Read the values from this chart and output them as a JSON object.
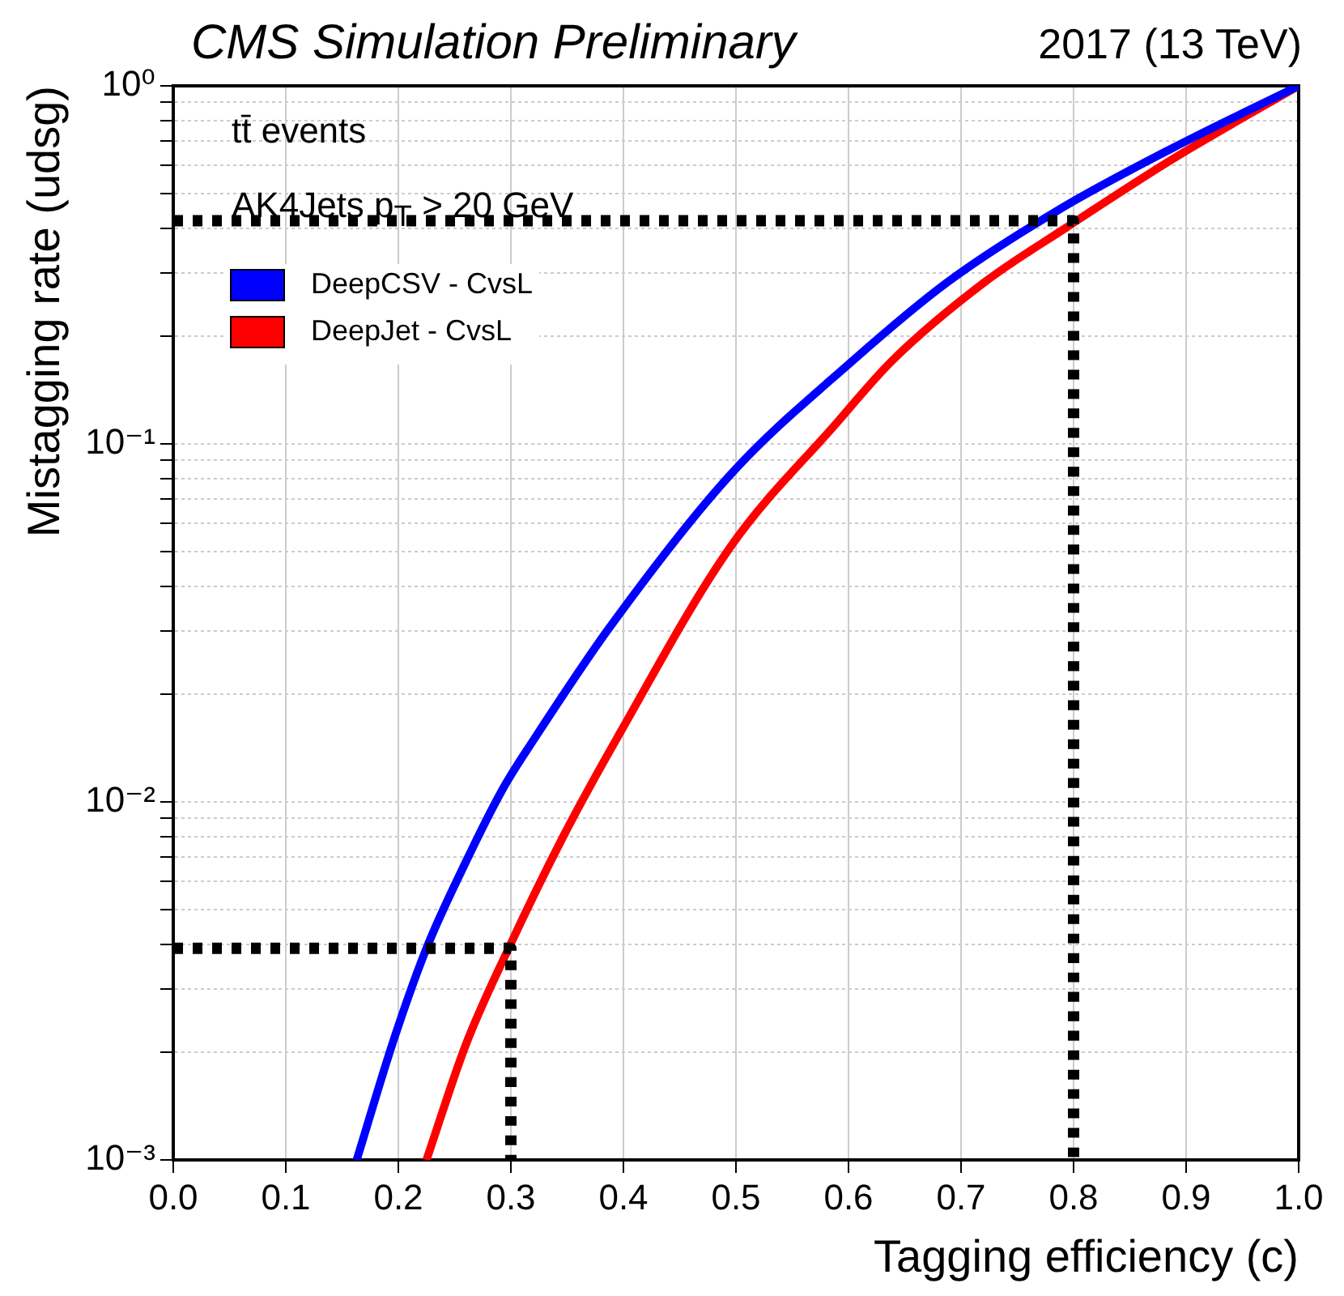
{
  "chart_data": {
    "type": "line",
    "title": "CMS Simulation Preliminary",
    "subtitle": "2017 (13 TeV)",
    "xlabel": "Tagging efficiency (c)",
    "ylabel": "Mistagging rate (udsg)",
    "annotations": [
      "tt̄ events",
      "AK4Jets p$_{T}$ > 20 GeV"
    ],
    "xlim": [
      0,
      1
    ],
    "xticks": [
      {
        "value": 0,
        "label": "0.0"
      },
      0.1,
      0.2,
      0.3,
      0.4,
      0.5,
      0.6,
      0.7,
      0.8,
      0.9,
      {
        "value": 1,
        "label": "1.0"
      }
    ],
    "ylim": [
      0.001,
      1
    ],
    "log": "y",
    "yticks": [
      {
        "value": 0.001,
        "label": "10⁻³"
      },
      {
        "value": 0.002,
        "label": null
      },
      {
        "value": 0.003,
        "label": null
      },
      {
        "value": 0.004,
        "label": null
      },
      {
        "value": 0.005,
        "label": null
      },
      {
        "value": 0.006,
        "label": null
      },
      {
        "value": 0.007,
        "label": null
      },
      {
        "value": 0.008,
        "label": null
      },
      {
        "value": 0.009,
        "label": null
      },
      {
        "value": 0.01,
        "label": "10⁻²"
      },
      {
        "value": 0.02,
        "label": null
      },
      {
        "value": 0.03,
        "label": null
      },
      {
        "value": 0.04,
        "label": null
      },
      {
        "value": 0.05,
        "label": null
      },
      {
        "value": 0.06,
        "label": null
      },
      {
        "value": 0.07,
        "label": null
      },
      {
        "value": 0.08,
        "label": null
      },
      {
        "value": 0.09,
        "label": null
      },
      {
        "value": 0.1,
        "label": "10⁻¹"
      },
      {
        "value": 0.2,
        "label": null
      },
      {
        "value": 0.3,
        "label": null
      },
      {
        "value": 0.4,
        "label": null
      },
      {
        "value": 0.5,
        "label": null
      },
      {
        "value": 0.6,
        "label": null
      },
      {
        "value": 0.7,
        "label": null
      },
      {
        "value": 0.8,
        "label": null
      },
      {
        "value": 0.9,
        "label": null
      },
      {
        "value": 1,
        "label": "10⁰"
      }
    ],
    "grid": true,
    "legend": "top left",
    "marker": "none",
    "series": [
      {
        "name": "DeepCSV - CvsL",
        "color": "#0000ff",
        "x": [
          0.163,
          0.196,
          0.225,
          0.26,
          0.293,
          0.322,
          0.388,
          0.495,
          0.604,
          0.688,
          0.787,
          0.887,
          1.0
        ],
        "values": [
          0.001,
          0.00217,
          0.0039,
          0.0068,
          0.0109,
          0.0152,
          0.0308,
          0.082,
          0.171,
          0.283,
          0.451,
          0.668,
          1.0
        ]
      },
      {
        "name": "DeepJet - CvsL",
        "color": "#ff0000",
        "x": [
          0.225,
          0.26,
          0.298,
          0.347,
          0.395,
          0.495,
          0.588,
          0.639,
          0.721,
          0.794,
          0.887,
          1.0
        ],
        "values": [
          0.001,
          0.0021,
          0.0039,
          0.00806,
          0.0152,
          0.0515,
          0.113,
          0.171,
          0.283,
          0.403,
          0.622,
          1.0
        ]
      },
      {
        "color": "#000000",
        "line_style": "dotted",
        "x": [
          0,
          0.3,
          0.3
        ],
        "values": [
          0.0039,
          0.0039,
          0.001
        ]
      },
      {
        "color": "#000000",
        "line_style": "dotted",
        "x": [
          0,
          0.8,
          0.8
        ],
        "values": [
          0.42,
          0.42,
          0.001
        ]
      }
    ]
  }
}
